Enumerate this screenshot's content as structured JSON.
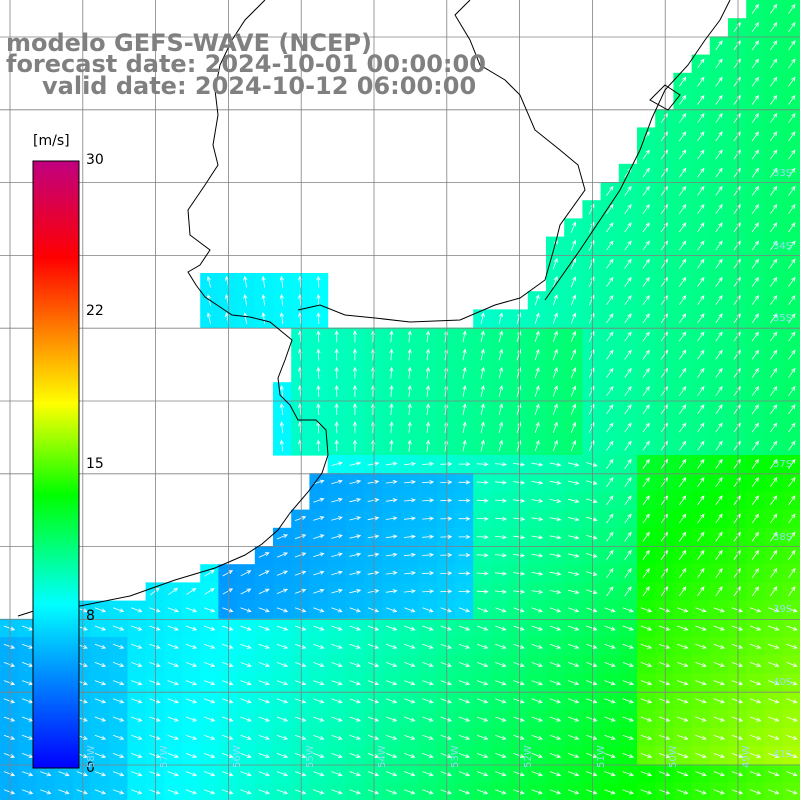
{
  "map": {
    "title_line_1": "modelo GEFS-WAVE (NCEP)",
    "title_line_2": "forecast date: 2024-10-01 00:00:00",
    "title_line_3": "valid date: 2024-10-12 06:00:00",
    "title_color": "#808080",
    "field": "wind speed",
    "colorbar": {
      "unit": "[m/s]",
      "ticks": [
        "30",
        "22",
        "15",
        "8",
        "0"
      ],
      "min": 0,
      "max": 30,
      "stops": [
        "#0000ff",
        "#0090ff",
        "#00ffff",
        "#00ff00",
        "#ffff00",
        "#ff8000",
        "#ff0000",
        "#c00080"
      ]
    },
    "lat_labels": [
      "33S",
      "34S",
      "35S",
      "37S",
      "38S",
      "39S",
      "40S",
      "41S"
    ],
    "lon_labels": [
      "58W",
      "57W",
      "56W",
      "55W",
      "54W",
      "53W",
      "52W",
      "51W",
      "50W",
      "49W"
    ],
    "colors": {
      "land": "#ffffff",
      "coast": "#000000",
      "grid": "#808080",
      "arrow": "#ffffff"
    }
  }
}
